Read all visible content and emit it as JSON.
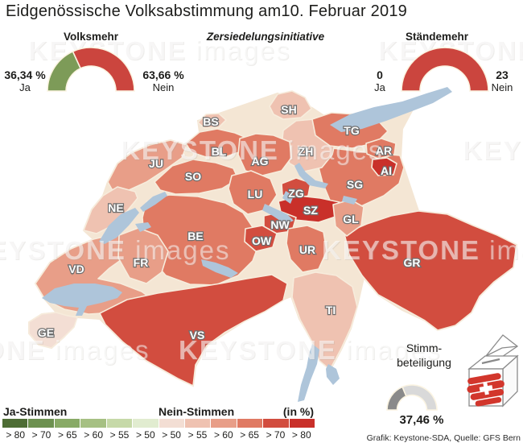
{
  "title": "Eidgenössische Volksabstimmung am10. Februar 2019",
  "subtitle": "Zersiedelungsinitiative",
  "gauges": {
    "volksmehr": {
      "label": "Volksmehr",
      "ja_value": "36,34 %",
      "ja_label": "Ja",
      "nein_value": "63,66 %",
      "nein_label": "Nein",
      "ja_pct": 36.34,
      "nein_pct": 63.66
    },
    "staendemehr": {
      "label": "Ständemehr",
      "ja_value": "0",
      "ja_label": "Ja",
      "nein_value": "23",
      "nein_label": "Nein",
      "ja_pct": 0,
      "nein_pct": 100
    },
    "turnout": {
      "label_line1": "Stimm-",
      "label_line2": "beteiligung",
      "value": "37,46 %",
      "pct": 37.46
    }
  },
  "colors": {
    "ja_green": "#7d9b58",
    "nein_red": "#cb453e",
    "gauge_divider": "#fbf4e2",
    "turnout_filled": "#8a8a8a",
    "turnout_empty": "#d9d9d9",
    "lake": "#aec5da",
    "border": "#f7ecdc",
    "country_fill": "#f4e6d4",
    "label_fill": "#ffffff",
    "label_outline": "#6e6e6e",
    "ballot_red": "#d2362c"
  },
  "legend": {
    "ja_label": "Ja-Stimmen",
    "nein_label": "Nein-Stimmen",
    "unit_label": "(in %)",
    "classes": [
      {
        "id": "j80",
        "label": "> 80",
        "color": "#4e6d35"
      },
      {
        "id": "j70",
        "label": "> 70",
        "color": "#6d9150"
      },
      {
        "id": "j65",
        "label": "> 65",
        "color": "#88aa66"
      },
      {
        "id": "j60",
        "label": "> 60",
        "color": "#a6c083"
      },
      {
        "id": "j55",
        "label": "> 55",
        "color": "#c6d9a8"
      },
      {
        "id": "j50",
        "label": "> 50",
        "color": "#e1ecd0"
      },
      {
        "id": "n50",
        "label": "> 50",
        "color": "#f3ded4"
      },
      {
        "id": "n55",
        "label": "> 55",
        "color": "#efc2b1"
      },
      {
        "id": "n60",
        "label": "> 60",
        "color": "#e89e88"
      },
      {
        "id": "n65",
        "label": "> 65",
        "color": "#e07a63"
      },
      {
        "id": "n70",
        "label": "> 70",
        "color": "#d24d3f"
      },
      {
        "id": "n80",
        "label": "> 80",
        "color": "#c9302a"
      }
    ]
  },
  "chart_data": {
    "type": "choropleth",
    "title": "Eidgenössische Volksabstimmung am10. Februar 2019",
    "subtitle": "Zersiedelungsinitiative",
    "volksmehr": {
      "ja_pct": 36.34,
      "nein_pct": 63.66
    },
    "staendemehr": {
      "ja_cantons": 0,
      "nein_cantons": 23
    },
    "turnout_pct": 37.46,
    "unit": "Nein-Stimmen in %",
    "cantons": [
      {
        "id": "GR",
        "result_class": "n70"
      },
      {
        "id": "BE",
        "result_class": "n65"
      },
      {
        "id": "VD",
        "result_class": "n60"
      },
      {
        "id": "VS",
        "result_class": "n70"
      },
      {
        "id": "TI",
        "result_class": "n55"
      },
      {
        "id": "SG",
        "result_class": "n65"
      },
      {
        "id": "ZH",
        "result_class": "n55"
      },
      {
        "id": "TG",
        "result_class": "n65"
      },
      {
        "id": "SH",
        "result_class": "n55"
      },
      {
        "id": "BS",
        "result_class": "n55"
      },
      {
        "id": "BL",
        "result_class": "n65"
      },
      {
        "id": "JU",
        "result_class": "n60"
      },
      {
        "id": "SO",
        "result_class": "n65"
      },
      {
        "id": "AG",
        "result_class": "n65"
      },
      {
        "id": "LU",
        "result_class": "n65"
      },
      {
        "id": "NE",
        "result_class": "n55"
      },
      {
        "id": "FR",
        "result_class": "n60"
      },
      {
        "id": "GE",
        "result_class": "n50"
      },
      {
        "id": "ZG",
        "result_class": "n70"
      },
      {
        "id": "SZ",
        "result_class": "n80"
      },
      {
        "id": "GL",
        "result_class": "n60"
      },
      {
        "id": "AR",
        "result_class": "n65"
      },
      {
        "id": "AI",
        "result_class": "n80"
      },
      {
        "id": "NW",
        "result_class": "n70"
      },
      {
        "id": "OW",
        "result_class": "n70"
      },
      {
        "id": "UR",
        "result_class": "n65"
      }
    ]
  },
  "watermark": {
    "word1": "KEYSTONE",
    "word2": "images"
  },
  "credit": "Grafik: Keystone-SDA, Quelle: GFS Bern"
}
